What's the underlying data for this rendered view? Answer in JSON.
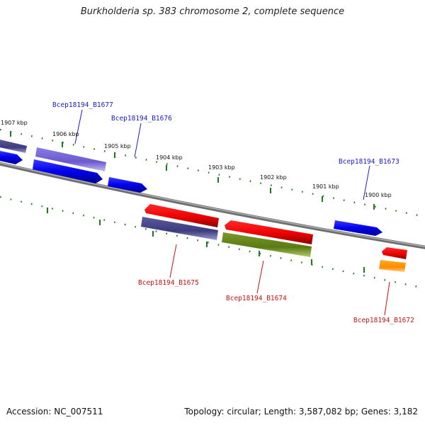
{
  "title": "Burkholderia sp. 383 chromosome 2, complete sequence",
  "footer": {
    "accession": "Accession: NC_007511",
    "summary": "Topology: circular; Length: 3,587,082 bp; Genes: 3,182"
  },
  "scale": {
    "ticks": [
      "1907 kbp",
      "1906 kbp",
      "1905 kbp",
      "1904 kbp",
      "1903 kbp",
      "1902 kbp",
      "1901 kbp",
      "1900 kbp"
    ]
  },
  "gene_labels": {
    "b1677": "Bcep18194_B1677",
    "b1676": "Bcep18194_B1676",
    "b1673": "Bcep18194_B1673",
    "b1675": "Bcep18194_B1675",
    "b1674": "Bcep18194_B1674",
    "b1672": "Bcep18194_B1672"
  },
  "colors": {
    "forward_label": "#1a1acc",
    "reverse_label": "#cc1111",
    "backbone": "#8c8c8c",
    "tick": "#1f7a1f"
  }
}
